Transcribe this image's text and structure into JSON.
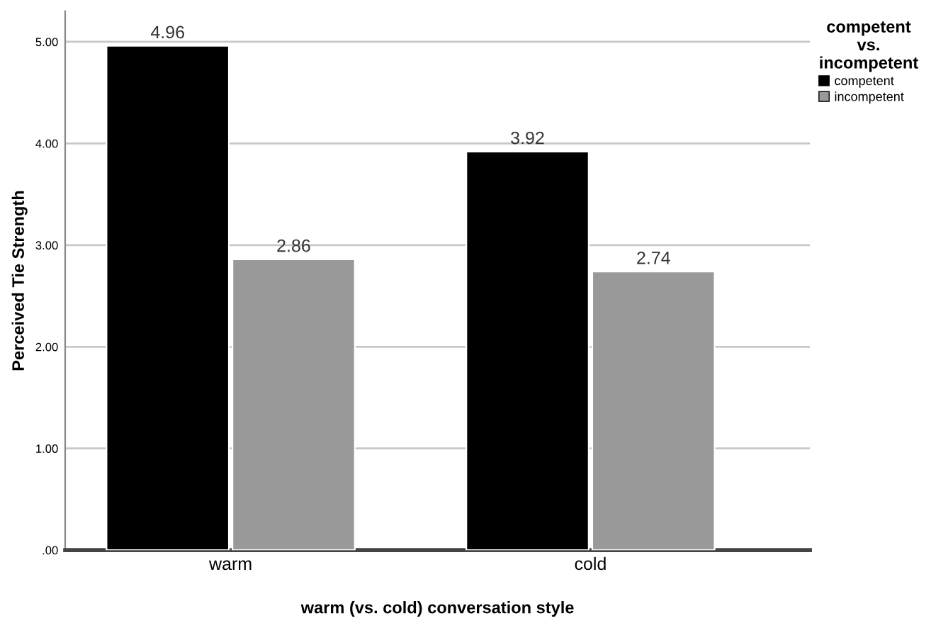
{
  "chart_data": {
    "type": "bar",
    "xlabel": "warm (vs. cold) conversation style",
    "ylabel": "Perceived Tie Strength",
    "legend_title": "competent\nvs.\nincompetent",
    "categories": [
      "warm",
      "cold"
    ],
    "series": [
      {
        "name": "competent",
        "color": "#000000",
        "values": [
          4.96,
          3.92
        ]
      },
      {
        "name": "incompetent",
        "color": "#999999",
        "values": [
          2.86,
          2.74
        ]
      }
    ],
    "ylim": [
      0,
      5.3
    ],
    "yticks": [
      {
        "value": 0,
        "label": ".00"
      },
      {
        "value": 1,
        "label": "1.00"
      },
      {
        "value": 2,
        "label": "2.00"
      },
      {
        "value": 3,
        "label": "3.00"
      },
      {
        "value": 4,
        "label": "4.00"
      },
      {
        "value": 5,
        "label": "5.00"
      }
    ],
    "grid": "y",
    "legend": "right",
    "data_labels": true
  }
}
